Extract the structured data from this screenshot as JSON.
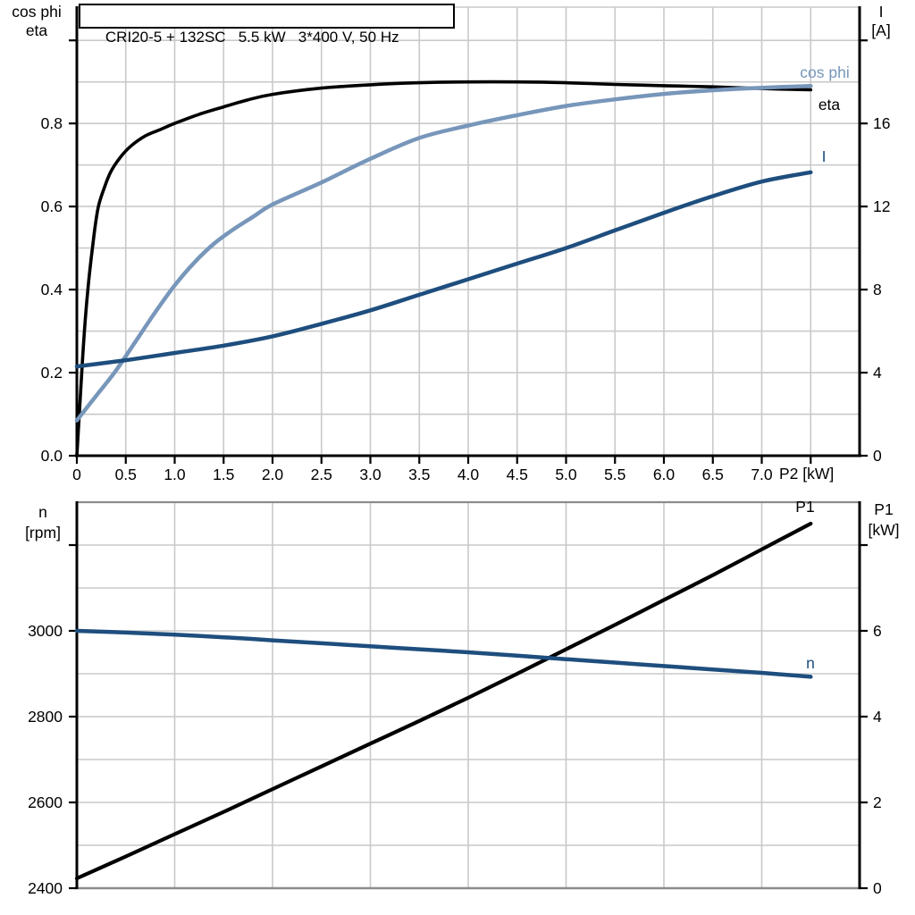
{
  "title": "CRI20-5 + 132SC   5.5 kW   3*400 V, 50 Hz",
  "colors": {
    "eta": "#000000",
    "cos_phi": "#7796ba",
    "current": "#1e4e7e",
    "p1": "#000000",
    "n": "#1e4e7e",
    "grid": "#c9c9c9",
    "axis": "#000000",
    "frame": "#8c8c8c",
    "text": "#000000"
  },
  "top_chart": {
    "x_label": "P2 [kW]",
    "y_left_label_line1": "cos phi",
    "y_left_label_line2": "eta",
    "y_right_label_line1": "I",
    "y_right_label_line2": "[A]",
    "curve_label_cos_phi": "cos phi",
    "curve_label_eta": "eta",
    "curve_label_current": "I"
  },
  "bottom_chart": {
    "y_left_label_line1": "n",
    "y_left_label_line2": "[rpm]",
    "y_right_label_line1": "P1",
    "y_right_label_line2": "[kW]",
    "curve_label_p1": "P1",
    "curve_label_n": "n"
  },
  "chart_data": [
    {
      "type": "line",
      "title": "CRI20-5 + 132SC   5.5 kW   3*400 V, 50 Hz",
      "xlabel": "P2 [kW]",
      "x_range": [
        0,
        8
      ],
      "x_ticks": [
        0,
        0.5,
        1,
        1.5,
        2,
        2.5,
        3,
        3.5,
        4,
        4.5,
        5,
        5.5,
        6,
        6.5,
        7,
        7.5
      ],
      "x_tick_labels": [
        "0",
        "0.5",
        "1.0",
        "1.5",
        "2.0",
        "2.5",
        "3.0",
        "3.5",
        "4.0",
        "4.5",
        "5.0",
        "5.5",
        "6.0",
        "6.5",
        "7.0",
        ""
      ],
      "x_grid_values": [
        0.5,
        1,
        1.5,
        2,
        2.5,
        3,
        3.5,
        4,
        4.5,
        5,
        5.5,
        6,
        6.5,
        7,
        7.5
      ],
      "grid": true,
      "legend_position": "right-inside",
      "y_left": {
        "label": "cos phi / eta",
        "range": [
          0,
          1.08
        ],
        "ticks": [
          0,
          0.2,
          0.4,
          0.6,
          0.8,
          1.0
        ],
        "tick_labels": [
          "0.0",
          "0.2",
          "0.4",
          "0.6",
          "0.8",
          ""
        ],
        "grid_values": [
          0.1,
          0.2,
          0.3,
          0.4,
          0.5,
          0.6,
          0.7,
          0.8,
          0.9,
          1.0
        ]
      },
      "y_right": {
        "label": "I [A]",
        "range": [
          0,
          21.6
        ],
        "ticks": [
          0,
          4,
          8,
          12,
          16,
          20
        ],
        "tick_labels": [
          "0",
          "4",
          "8",
          "12",
          "16",
          ""
        ]
      },
      "series": [
        {
          "name": "eta",
          "axis": "left",
          "color_key": "eta",
          "width": 3.6,
          "points": [
            [
              0,
              0
            ],
            [
              0.03,
              0.12
            ],
            [
              0.06,
              0.24
            ],
            [
              0.09,
              0.34
            ],
            [
              0.13,
              0.44
            ],
            [
              0.18,
              0.54
            ],
            [
              0.22,
              0.6
            ],
            [
              0.28,
              0.645
            ],
            [
              0.35,
              0.685
            ],
            [
              0.45,
              0.72
            ],
            [
              0.55,
              0.745
            ],
            [
              0.7,
              0.77
            ],
            [
              0.85,
              0.785
            ],
            [
              1,
              0.8
            ],
            [
              1.25,
              0.822
            ],
            [
              1.5,
              0.84
            ],
            [
              1.75,
              0.857
            ],
            [
              2,
              0.87
            ],
            [
              2.5,
              0.885
            ],
            [
              3,
              0.893
            ],
            [
              3.5,
              0.898
            ],
            [
              4,
              0.9
            ],
            [
              4.5,
              0.9
            ],
            [
              5,
              0.898
            ],
            [
              5.5,
              0.894
            ],
            [
              6,
              0.891
            ],
            [
              6.5,
              0.888
            ],
            [
              7,
              0.884
            ],
            [
              7.5,
              0.881
            ]
          ]
        },
        {
          "name": "cos phi",
          "axis": "left",
          "color_key": "cos_phi",
          "width": 4.5,
          "points": [
            [
              0,
              0.085
            ],
            [
              0.2,
              0.145
            ],
            [
              0.4,
              0.205
            ],
            [
              0.6,
              0.275
            ],
            [
              0.8,
              0.345
            ],
            [
              1,
              0.41
            ],
            [
              1.2,
              0.465
            ],
            [
              1.4,
              0.51
            ],
            [
              1.6,
              0.545
            ],
            [
              1.8,
              0.575
            ],
            [
              2,
              0.605
            ],
            [
              2.5,
              0.658
            ],
            [
              3,
              0.715
            ],
            [
              3.5,
              0.765
            ],
            [
              4,
              0.795
            ],
            [
              4.5,
              0.82
            ],
            [
              5,
              0.842
            ],
            [
              5.5,
              0.858
            ],
            [
              6,
              0.871
            ],
            [
              6.5,
              0.88
            ],
            [
              7,
              0.886
            ],
            [
              7.5,
              0.89
            ]
          ]
        },
        {
          "name": "I",
          "axis": "right",
          "color_key": "current",
          "width": 4.5,
          "points": [
            [
              0,
              4.3
            ],
            [
              0.5,
              4.6
            ],
            [
              1,
              4.95
            ],
            [
              1.5,
              5.3
            ],
            [
              2,
              5.75
            ],
            [
              2.5,
              6.35
            ],
            [
              3,
              7.0
            ],
            [
              3.5,
              7.75
            ],
            [
              4,
              8.5
            ],
            [
              4.5,
              9.25
            ],
            [
              5,
              10.0
            ],
            [
              5.5,
              10.85
            ],
            [
              6,
              11.7
            ],
            [
              6.5,
              12.5
            ],
            [
              7,
              13.2
            ],
            [
              7.5,
              13.65
            ]
          ]
        }
      ]
    },
    {
      "type": "line",
      "title": "",
      "xlabel": "",
      "x_range": [
        0,
        8
      ],
      "x_ticks": [],
      "x_tick_labels": [],
      "x_grid_values": [
        1,
        2,
        3,
        4,
        5,
        6,
        7
      ],
      "grid": true,
      "y_left": {
        "label": "n [rpm]",
        "range": [
          2400,
          3300
        ],
        "ticks": [
          2400,
          2600,
          2800,
          3000,
          3200
        ],
        "tick_labels": [
          "2400",
          "2600",
          "2800",
          "3000",
          ""
        ],
        "grid_values": [
          2500,
          2600,
          2700,
          2800,
          2900,
          3000,
          3100,
          3200
        ]
      },
      "y_right": {
        "label": "P1 [kW]",
        "range": [
          0,
          9
        ],
        "ticks": [
          0,
          2,
          4,
          6,
          8
        ],
        "tick_labels": [
          "0",
          "2",
          "4",
          "6",
          ""
        ]
      },
      "series": [
        {
          "name": "P1",
          "axis": "right",
          "color_key": "p1",
          "width": 4.2,
          "points": [
            [
              0,
              0.23
            ],
            [
              0.5,
              0.74
            ],
            [
              1,
              1.26
            ],
            [
              1.5,
              1.78
            ],
            [
              2,
              2.31
            ],
            [
              2.5,
              2.84
            ],
            [
              3,
              3.37
            ],
            [
              3.5,
              3.9
            ],
            [
              4,
              4.44
            ],
            [
              4.5,
              5.0
            ],
            [
              5,
              5.57
            ],
            [
              5.5,
              6.14
            ],
            [
              6,
              6.72
            ],
            [
              6.5,
              7.3
            ],
            [
              7,
              7.9
            ],
            [
              7.5,
              8.5
            ]
          ]
        },
        {
          "name": "n",
          "axis": "left",
          "color_key": "n",
          "width": 4.5,
          "points": [
            [
              0,
              3000
            ],
            [
              0.5,
              2996
            ],
            [
              1,
              2991
            ],
            [
              1.5,
              2985
            ],
            [
              2,
              2978
            ],
            [
              2.5,
              2971
            ],
            [
              3,
              2964
            ],
            [
              3.5,
              2957
            ],
            [
              4,
              2950
            ],
            [
              4.5,
              2942
            ],
            [
              5,
              2934
            ],
            [
              5.5,
              2926
            ],
            [
              6,
              2918
            ],
            [
              6.5,
              2910
            ],
            [
              7,
              2902
            ],
            [
              7.5,
              2893
            ]
          ]
        }
      ]
    }
  ]
}
